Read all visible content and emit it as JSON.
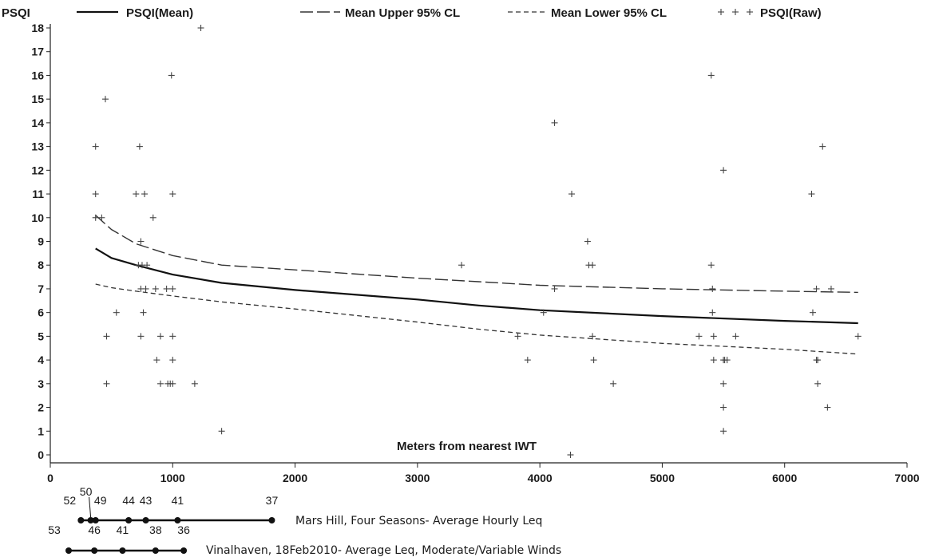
{
  "chart_data": {
    "type": "scatter",
    "ylabel": "PSQI",
    "xlabel": "Meters from nearest IWT",
    "xlim": [
      0,
      7000
    ],
    "ylim": [
      0,
      18
    ],
    "x_ticks": [
      0,
      1000,
      2000,
      3000,
      4000,
      5000,
      6000,
      7000
    ],
    "y_ticks": [
      0,
      1,
      2,
      3,
      4,
      5,
      6,
      7,
      8,
      9,
      10,
      11,
      12,
      13,
      14,
      15,
      16,
      17,
      18
    ],
    "grid": false,
    "legend_position": "top",
    "legend": [
      {
        "name": "PSQI(Mean)",
        "style": "solid"
      },
      {
        "name": "Mean Upper 95% CL",
        "style": "long-dash"
      },
      {
        "name": "Mean Lower 95% CL",
        "style": "short-dash"
      },
      {
        "name": "PSQI(Raw)",
        "style": "plus-marker"
      }
    ],
    "series": [
      {
        "name": "PSQI(Mean)",
        "style": "solid",
        "x": [
          370,
          500,
          700,
          1000,
          1400,
          2000,
          3000,
          3500,
          4000,
          5000,
          6000,
          6600
        ],
        "y": [
          8.7,
          8.3,
          8.0,
          7.6,
          7.25,
          6.95,
          6.55,
          6.3,
          6.1,
          5.85,
          5.65,
          5.55
        ]
      },
      {
        "name": "Mean Upper 95% CL",
        "style": "long-dash",
        "x": [
          370,
          500,
          700,
          1000,
          1400,
          2000,
          3000,
          3500,
          4000,
          5000,
          6000,
          6600
        ],
        "y": [
          10.1,
          9.5,
          8.9,
          8.4,
          8.0,
          7.8,
          7.45,
          7.3,
          7.15,
          7.0,
          6.9,
          6.85
        ]
      },
      {
        "name": "Mean Lower 95% CL",
        "style": "short-dash",
        "x": [
          370,
          500,
          700,
          1000,
          1400,
          2000,
          3000,
          3500,
          4000,
          5000,
          6000,
          6600
        ],
        "y": [
          7.2,
          7.05,
          6.9,
          6.7,
          6.45,
          6.15,
          5.6,
          5.3,
          5.05,
          4.7,
          4.45,
          4.25
        ]
      },
      {
        "name": "PSQI(Raw)",
        "style": "plus-marker",
        "x": [
          370,
          370,
          370,
          420,
          450,
          460,
          460,
          540,
          700,
          720,
          730,
          740,
          740,
          740,
          750,
          760,
          770,
          780,
          790,
          840,
          860,
          870,
          900,
          900,
          950,
          960,
          980,
          990,
          1000,
          1000,
          1000,
          1000,
          1000,
          1180,
          1230,
          1400,
          3360,
          3820,
          3900,
          4030,
          4120,
          4120,
          4260,
          4250,
          4390,
          4400,
          4430,
          4430,
          4440,
          4600,
          5300,
          5400,
          5400,
          5410,
          5410,
          5420,
          5420,
          5500,
          5500,
          5500,
          5500,
          5500,
          5510,
          5530,
          5600,
          6220,
          6230,
          6260,
          6260,
          6270,
          6270,
          6310,
          6350,
          6380,
          6600
        ],
        "y": [
          13,
          11,
          10,
          10,
          15,
          5,
          3,
          6,
          11,
          8,
          13,
          9,
          7,
          5,
          8,
          6,
          11,
          7,
          8,
          10,
          7,
          4,
          5,
          3,
          7,
          3,
          3,
          16,
          11,
          7,
          5,
          4,
          3,
          3,
          18,
          1,
          8,
          5,
          4,
          6,
          14,
          7,
          11,
          0,
          9,
          8,
          8,
          5,
          4,
          3,
          5,
          16,
          8,
          7,
          6,
          5,
          4,
          12,
          4,
          3,
          2,
          1,
          4,
          4,
          5,
          11,
          6,
          7,
          4,
          3,
          4,
          13,
          2,
          7,
          5
        ]
      }
    ]
  },
  "scales": [
    {
      "caption": "Mars Hill, Four Seasons- Average Hourly Leq",
      "points": [
        {
          "value": "52",
          "x": 250
        },
        {
          "value": "50",
          "x": 330
        },
        {
          "value": "49",
          "x": 370
        },
        {
          "value": "44",
          "x": 640
        },
        {
          "value": "43",
          "x": 780
        },
        {
          "value": "41",
          "x": 1040
        },
        {
          "value": "37",
          "x": 1810
        }
      ]
    },
    {
      "caption": "Vinalhaven, 18Feb2010- Average Leq, Moderate/Variable Winds",
      "points": [
        {
          "value": "53",
          "x": 150
        },
        {
          "value": "46",
          "x": 360
        },
        {
          "value": "41",
          "x": 590
        },
        {
          "value": "38",
          "x": 860
        },
        {
          "value": "36",
          "x": 1090
        }
      ]
    }
  ]
}
